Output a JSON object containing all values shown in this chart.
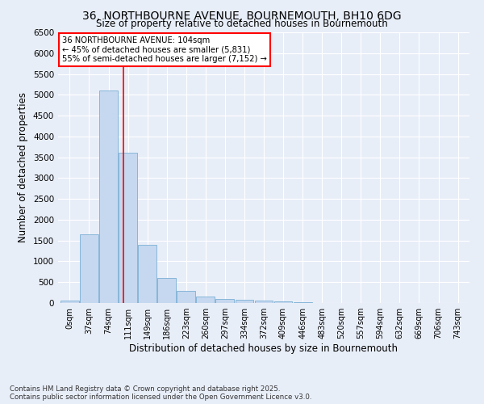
{
  "title": "36, NORTHBOURNE AVENUE, BOURNEMOUTH, BH10 6DG",
  "subtitle": "Size of property relative to detached houses in Bournemouth",
  "xlabel": "Distribution of detached houses by size in Bournemouth",
  "ylabel": "Number of detached properties",
  "bins": [
    "0sqm",
    "37sqm",
    "74sqm",
    "111sqm",
    "149sqm",
    "186sqm",
    "223sqm",
    "260sqm",
    "297sqm",
    "334sqm",
    "372sqm",
    "409sqm",
    "446sqm",
    "483sqm",
    "520sqm",
    "557sqm",
    "594sqm",
    "632sqm",
    "669sqm",
    "706sqm",
    "743sqm"
  ],
  "values": [
    50,
    1650,
    5100,
    3600,
    1400,
    600,
    300,
    155,
    105,
    80,
    50,
    30,
    10,
    5,
    3,
    2,
    1,
    0,
    0,
    0,
    0
  ],
  "bar_color": "#c5d8ef",
  "bar_edge_color": "#7aafd4",
  "vline_x_index": 2.78,
  "vline_color": "red",
  "annotation_text": "36 NORTHBOURNE AVENUE: 104sqm\n← 45% of detached houses are smaller (5,831)\n55% of semi-detached houses are larger (7,152) →",
  "annotation_box_color": "white",
  "annotation_box_edge": "red",
  "ylim": [
    0,
    6500
  ],
  "yticks": [
    0,
    500,
    1000,
    1500,
    2000,
    2500,
    3000,
    3500,
    4000,
    4500,
    5000,
    5500,
    6000,
    6500
  ],
  "bg_color": "#e8eef8",
  "footer1": "Contains HM Land Registry data © Crown copyright and database right 2025.",
  "footer2": "Contains public sector information licensed under the Open Government Licence v3.0."
}
